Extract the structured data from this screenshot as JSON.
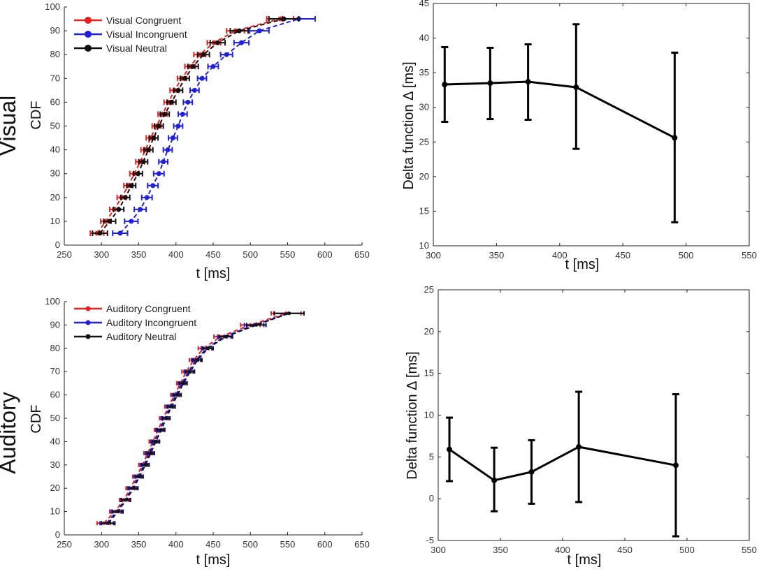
{
  "row_labels": [
    "Visual",
    "Auditory"
  ],
  "chart_data": [
    {
      "type": "line",
      "title": "",
      "xlabel": "t [ms]",
      "ylabel": "CDF",
      "xlim": [
        250,
        650
      ],
      "ylim": [
        0,
        100
      ],
      "xticks": [
        250,
        300,
        350,
        400,
        450,
        500,
        550,
        600,
        650
      ],
      "yticks": [
        0,
        10,
        20,
        30,
        40,
        50,
        60,
        70,
        80,
        90,
        100
      ],
      "legend_position": "top-left",
      "series": [
        {
          "name": "Visual Congruent",
          "color": "#e8201f",
          "marker": "large",
          "y": [
            5,
            10,
            15,
            20,
            25,
            30,
            35,
            40,
            45,
            50,
            55,
            60,
            65,
            70,
            75,
            80,
            85,
            90,
            95
          ],
          "x": [
            294,
            306,
            317,
            327,
            336,
            344,
            352,
            359,
            366,
            374,
            382,
            390,
            398,
            408,
            419,
            432,
            451,
            480,
            540
          ],
          "err": [
            9,
            7,
            6,
            6,
            6,
            6,
            6,
            6,
            6,
            6,
            6,
            6,
            6,
            6,
            7,
            8,
            9,
            12,
            18
          ]
        },
        {
          "name": "Visual Incongruent",
          "color": "#1f1fdc",
          "marker": "large",
          "y": [
            5,
            10,
            15,
            20,
            25,
            30,
            35,
            40,
            45,
            50,
            55,
            60,
            65,
            70,
            75,
            80,
            85,
            90,
            95
          ],
          "x": [
            325,
            340,
            352,
            361,
            369,
            377,
            383,
            389,
            396,
            403,
            409,
            416,
            425,
            435,
            450,
            468,
            488,
            512,
            565
          ],
          "err": [
            10,
            9,
            8,
            7,
            7,
            7,
            6,
            6,
            6,
            6,
            6,
            6,
            6,
            6,
            7,
            8,
            10,
            13,
            22
          ]
        },
        {
          "name": "Visual Neutral",
          "color": "#111111",
          "marker": "large",
          "y": [
            5,
            10,
            15,
            20,
            25,
            30,
            35,
            40,
            45,
            50,
            55,
            60,
            65,
            70,
            75,
            80,
            85,
            90,
            95
          ],
          "x": [
            298,
            311,
            323,
            332,
            340,
            349,
            356,
            363,
            370,
            377,
            385,
            394,
            403,
            412,
            423,
            437,
            456,
            485,
            545
          ],
          "err": [
            10,
            8,
            7,
            6,
            6,
            6,
            6,
            6,
            6,
            6,
            6,
            6,
            6,
            6,
            7,
            8,
            10,
            12,
            20
          ]
        }
      ]
    },
    {
      "type": "line",
      "title": "",
      "xlabel": "t [ms]",
      "ylabel": "Delta function Δ [ms]",
      "xlim": [
        300,
        550
      ],
      "ylim": [
        10,
        45
      ],
      "xticks": [
        300,
        350,
        400,
        450,
        500,
        550
      ],
      "yticks": [
        10,
        15,
        20,
        25,
        30,
        35,
        40,
        45
      ],
      "series": [
        {
          "name": "Delta",
          "color": "#000000",
          "x": [
            309,
            345,
            375,
            413,
            491
          ],
          "y": [
            33.3,
            33.5,
            33.7,
            32.9,
            25.6
          ],
          "lower": [
            27.9,
            28.3,
            28.2,
            24.0,
            13.4
          ],
          "upper": [
            38.7,
            38.6,
            39.1,
            42.0,
            37.9
          ]
        }
      ]
    },
    {
      "type": "line",
      "title": "",
      "xlabel": "t [ms]",
      "ylabel": "CDF",
      "xlim": [
        250,
        650
      ],
      "ylim": [
        0,
        100
      ],
      "xticks": [
        250,
        300,
        350,
        400,
        450,
        500,
        550,
        600,
        650
      ],
      "yticks": [
        0,
        10,
        20,
        30,
        40,
        50,
        60,
        70,
        80,
        90,
        100
      ],
      "legend_position": "top-left",
      "series": [
        {
          "name": "Auditory Congruent",
          "color": "#e8201f",
          "marker": "small",
          "y": [
            5,
            10,
            15,
            20,
            25,
            30,
            35,
            40,
            45,
            50,
            55,
            60,
            65,
            70,
            75,
            80,
            85,
            90,
            95
          ],
          "x": [
            303,
            318,
            330,
            339,
            347,
            355,
            362,
            369,
            376,
            383,
            390,
            398,
            406,
            414,
            424,
            437,
            460,
            500,
            548
          ],
          "err": [
            9,
            7,
            6,
            6,
            5,
            5,
            5,
            5,
            5,
            5,
            5,
            5,
            5,
            6,
            6,
            7,
            9,
            13,
            20
          ]
        },
        {
          "name": "Auditory Incongruent",
          "color": "#1f1fdc",
          "marker": "small",
          "y": [
            5,
            10,
            15,
            20,
            25,
            30,
            35,
            40,
            45,
            50,
            55,
            60,
            65,
            70,
            75,
            80,
            85,
            90,
            95
          ],
          "x": [
            307,
            320,
            332,
            341,
            349,
            357,
            364,
            371,
            378,
            385,
            392,
            400,
            408,
            417,
            427,
            441,
            465,
            505,
            552
          ],
          "err": [
            9,
            7,
            6,
            6,
            5,
            5,
            5,
            5,
            5,
            5,
            5,
            5,
            5,
            6,
            6,
            7,
            9,
            13,
            20
          ]
        },
        {
          "name": "Auditory Neutral",
          "color": "#111111",
          "marker": "small",
          "y": [
            5,
            10,
            15,
            20,
            25,
            30,
            35,
            40,
            45,
            50,
            55,
            60,
            65,
            70,
            75,
            80,
            85,
            90,
            95
          ],
          "x": [
            309,
            322,
            333,
            343,
            351,
            359,
            366,
            373,
            380,
            387,
            394,
            402,
            410,
            419,
            429,
            443,
            467,
            508,
            552
          ],
          "err": [
            9,
            7,
            6,
            6,
            5,
            5,
            5,
            5,
            5,
            5,
            5,
            5,
            5,
            6,
            6,
            7,
            9,
            13,
            20
          ]
        }
      ]
    },
    {
      "type": "line",
      "title": "",
      "xlabel": "t [ms]",
      "ylabel": "Delta function Δ [ms]",
      "xlim": [
        300,
        550
      ],
      "ylim": [
        -5,
        25
      ],
      "xticks": [
        300,
        350,
        400,
        450,
        500,
        550
      ],
      "yticks": [
        -5,
        0,
        5,
        10,
        15,
        20,
        25
      ],
      "series": [
        {
          "name": "Delta",
          "color": "#000000",
          "x": [
            309,
            345,
            375,
            413,
            491
          ],
          "y": [
            5.9,
            2.2,
            3.2,
            6.2,
            4.0
          ],
          "lower": [
            2.1,
            -1.5,
            -0.6,
            -0.4,
            -4.5
          ],
          "upper": [
            9.7,
            6.1,
            7.0,
            12.8,
            12.5
          ]
        }
      ]
    }
  ]
}
